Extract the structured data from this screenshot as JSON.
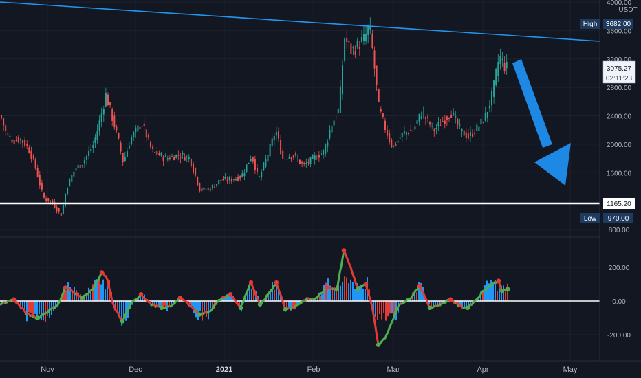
{
  "chart_data": {
    "type": "candlestick",
    "currency_label": "USDT",
    "price_axis": {
      "ylim": [
        760,
        4020
      ],
      "ticks": [
        "4000.00",
        "3600.00",
        "3200.00",
        "2800.00",
        "2400.00",
        "2000.00",
        "1600.00",
        "800.00"
      ],
      "tick_values": [
        4000,
        3600,
        3200,
        2800,
        2400,
        2000,
        1600,
        800
      ]
    },
    "oscillator_axis": {
      "ylim": [
        -300,
        330
      ],
      "ticks": [
        "200.00",
        "0.00",
        "-200.00"
      ],
      "tick_values": [
        200,
        0,
        -200
      ]
    },
    "time_axis": {
      "labels": [
        "Nov",
        "Dec",
        "2021",
        "Feb",
        "Mar",
        "Apr",
        "May"
      ],
      "year_label": "2021"
    },
    "markers": {
      "high": {
        "label": "High",
        "value": "3682.00",
        "price": 3682
      },
      "low": {
        "label": "Low",
        "value": "970.00",
        "price": 970
      },
      "current": {
        "value": "3075.27",
        "countdown": "02:11:23",
        "price": 3075
      },
      "support": {
        "value": "1165.20",
        "price": 1165
      }
    },
    "price_path": [
      [
        0,
        2400
      ],
      [
        8,
        2150
      ],
      [
        18,
        2050
      ],
      [
        28,
        2080
      ],
      [
        40,
        1950
      ],
      [
        50,
        1700
      ],
      [
        62,
        1250
      ],
      [
        75,
        1180
      ],
      [
        88,
        1000
      ],
      [
        96,
        1400
      ],
      [
        108,
        1650
      ],
      [
        120,
        1750
      ],
      [
        135,
        2000
      ],
      [
        146,
        2400
      ],
      [
        153,
        2700
      ],
      [
        160,
        2450
      ],
      [
        170,
        2100
      ],
      [
        178,
        1750
      ],
      [
        190,
        2100
      ],
      [
        205,
        2300
      ],
      [
        220,
        1900
      ],
      [
        240,
        1800
      ],
      [
        260,
        1850
      ],
      [
        275,
        1800
      ],
      [
        290,
        1350
      ],
      [
        305,
        1380
      ],
      [
        320,
        1500
      ],
      [
        335,
        1500
      ],
      [
        350,
        1550
      ],
      [
        365,
        1850
      ],
      [
        375,
        1500
      ],
      [
        390,
        1900
      ],
      [
        400,
        2200
      ],
      [
        410,
        1800
      ],
      [
        425,
        1850
      ],
      [
        440,
        1700
      ],
      [
        455,
        1800
      ],
      [
        470,
        1900
      ],
      [
        480,
        2250
      ],
      [
        492,
        2500
      ],
      [
        500,
        3500
      ],
      [
        510,
        3300
      ],
      [
        520,
        3400
      ],
      [
        530,
        3500
      ],
      [
        536,
        3680
      ],
      [
        542,
        3200
      ],
      [
        550,
        2500
      ],
      [
        560,
        2200
      ],
      [
        570,
        1950
      ],
      [
        585,
        2150
      ],
      [
        600,
        2200
      ],
      [
        612,
        2450
      ],
      [
        630,
        2200
      ],
      [
        645,
        2350
      ],
      [
        655,
        2450
      ],
      [
        668,
        2200
      ],
      [
        680,
        2100
      ],
      [
        695,
        2250
      ],
      [
        705,
        2400
      ],
      [
        715,
        2700
      ],
      [
        725,
        3250
      ],
      [
        732,
        3100
      ],
      [
        738,
        3075
      ]
    ],
    "oscillator_path": [
      [
        0,
        -20
      ],
      [
        20,
        10
      ],
      [
        40,
        -80
      ],
      [
        55,
        -100
      ],
      [
        70,
        -60
      ],
      [
        85,
        -20
      ],
      [
        95,
        80
      ],
      [
        105,
        60
      ],
      [
        120,
        20
      ],
      [
        135,
        70
      ],
      [
        148,
        170
      ],
      [
        155,
        140
      ],
      [
        165,
        -30
      ],
      [
        178,
        -120
      ],
      [
        190,
        -20
      ],
      [
        205,
        40
      ],
      [
        220,
        -20
      ],
      [
        235,
        -40
      ],
      [
        248,
        -30
      ],
      [
        262,
        20
      ],
      [
        275,
        -20
      ],
      [
        290,
        -80
      ],
      [
        305,
        -60
      ],
      [
        320,
        10
      ],
      [
        335,
        40
      ],
      [
        350,
        -40
      ],
      [
        365,
        110
      ],
      [
        378,
        -20
      ],
      [
        390,
        40
      ],
      [
        402,
        110
      ],
      [
        415,
        -50
      ],
      [
        430,
        -30
      ],
      [
        445,
        10
      ],
      [
        460,
        20
      ],
      [
        475,
        80
      ],
      [
        490,
        70
      ],
      [
        500,
        300
      ],
      [
        510,
        200
      ],
      [
        520,
        70
      ],
      [
        532,
        100
      ],
      [
        542,
        -50
      ],
      [
        550,
        -260
      ],
      [
        560,
        -220
      ],
      [
        570,
        -120
      ],
      [
        580,
        -20
      ],
      [
        595,
        10
      ],
      [
        610,
        90
      ],
      [
        625,
        -40
      ],
      [
        640,
        -20
      ],
      [
        655,
        10
      ],
      [
        668,
        -30
      ],
      [
        680,
        -40
      ],
      [
        695,
        20
      ],
      [
        705,
        70
      ],
      [
        715,
        100
      ],
      [
        725,
        120
      ],
      [
        730,
        60
      ],
      [
        738,
        70
      ]
    ],
    "colors": {
      "background": "#131722",
      "grid": "#1e222d",
      "axis_text": "#b2b5be",
      "candle_up": "#26a69a",
      "candle_down": "#ef5350",
      "trendline": "#2196f3",
      "support_line": "#ffffff",
      "arrow": "#1e88e5",
      "label_box": "#1e3a5f",
      "current_box": "#f0f3fa",
      "osc_green": "#4caf50",
      "osc_red": "#e53935",
      "osc_hist": "#2196f3"
    }
  }
}
